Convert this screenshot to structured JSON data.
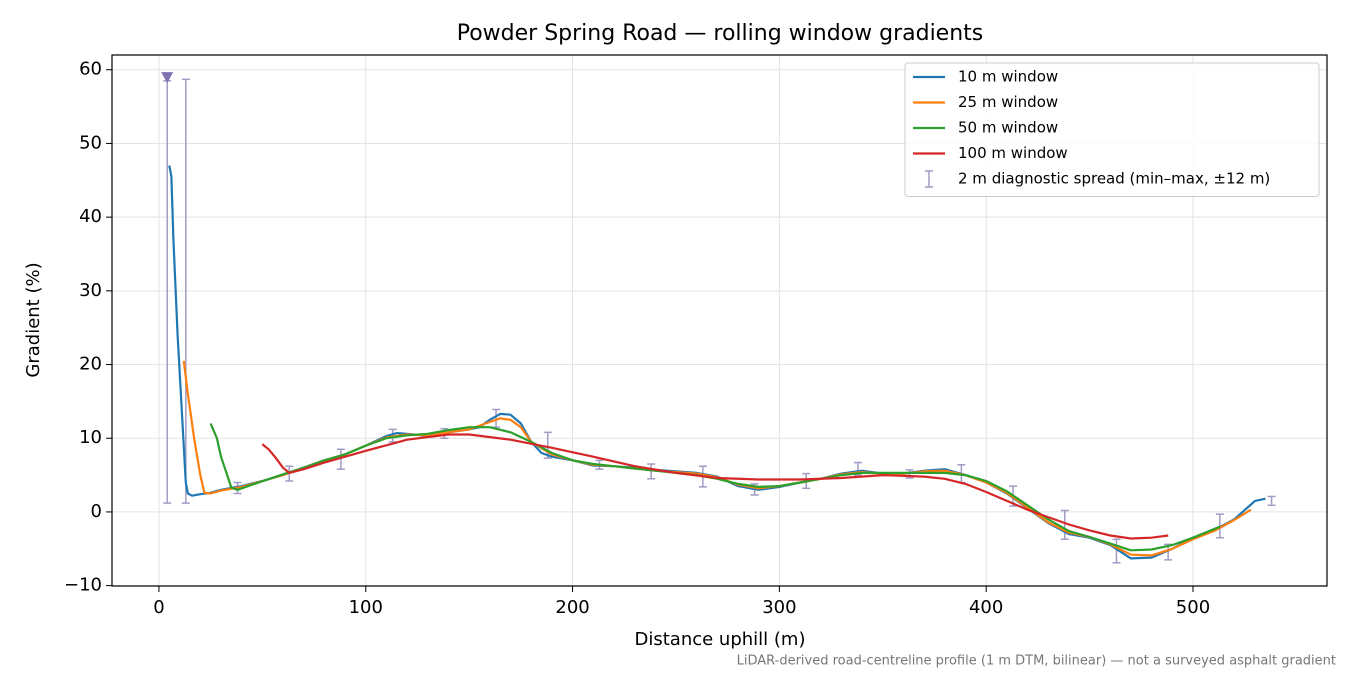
{
  "chart_data": {
    "type": "line",
    "title": "Powder Spring Road — rolling window gradients",
    "x_label": "Distance uphill (m)",
    "y_label": "Gradient (%)",
    "footnote": "LiDAR-derived road-centreline profile (1 m DTM, bilinear) — not a surveyed asphalt gradient",
    "xlim": [
      -22.7,
      564.8
    ],
    "ylim": [
      -10.05,
      62
    ],
    "xticks": [
      0,
      100,
      200,
      300,
      400,
      500
    ],
    "yticks": [
      {
        "value": -10,
        "label": "−10"
      },
      0,
      10,
      20,
      30,
      40,
      50,
      60
    ],
    "grid": true,
    "legend": "upper right",
    "series": [
      {
        "name": "10 m window",
        "color": "#1f77b4",
        "x": [
          5,
          6,
          7,
          9,
          11,
          13,
          14,
          16,
          20,
          25,
          30,
          40,
          50,
          60,
          70,
          80,
          90,
          100,
          110,
          115,
          120,
          130,
          140,
          150,
          155,
          160,
          165,
          170,
          175,
          180,
          185,
          190,
          200,
          210,
          220,
          230,
          240,
          250,
          260,
          270,
          280,
          290,
          300,
          310,
          320,
          330,
          340,
          350,
          360,
          370,
          380,
          390,
          400,
          410,
          420,
          430,
          440,
          450,
          460,
          470,
          480,
          490,
          500,
          510,
          520,
          530,
          535
        ],
        "values": [
          47,
          45.5,
          37,
          24,
          14,
          4,
          2.5,
          2.2,
          2.4,
          2.6,
          3,
          3.5,
          4.2,
          5,
          6,
          7,
          7.8,
          9,
          10.3,
          10.7,
          10.6,
          10.3,
          10.8,
          11.2,
          11.5,
          12.5,
          13.3,
          13.2,
          12,
          9.5,
          8,
          7.5,
          7,
          6.3,
          6.2,
          6,
          5.7,
          5.5,
          5.3,
          4.8,
          3.5,
          3,
          3.4,
          4,
          4.5,
          5.2,
          5.6,
          5.2,
          5.2,
          5.6,
          5.8,
          5,
          4,
          2.5,
          0.5,
          -1.5,
          -3,
          -3.5,
          -4.5,
          -6.3,
          -6.2,
          -5,
          -3.5,
          -2.5,
          -1,
          1.5,
          1.8
        ]
      },
      {
        "name": "25 m window",
        "color": "#ff7f0e",
        "x": [
          12,
          14,
          17,
          20,
          22,
          25,
          30,
          40,
          50,
          60,
          70,
          80,
          90,
          100,
          110,
          120,
          130,
          140,
          150,
          160,
          165,
          170,
          175,
          180,
          190,
          200,
          210,
          220,
          230,
          240,
          250,
          260,
          270,
          280,
          290,
          300,
          310,
          320,
          330,
          340,
          350,
          360,
          370,
          380,
          390,
          400,
          410,
          420,
          430,
          440,
          450,
          460,
          470,
          480,
          490,
          500,
          510,
          520,
          528
        ],
        "values": [
          20.5,
          16,
          10,
          5,
          2.6,
          2.5,
          2.9,
          3.4,
          4.2,
          5,
          6,
          7,
          7.8,
          9,
          10.1,
          10.5,
          10.4,
          10.8,
          11.2,
          12.2,
          12.7,
          12.5,
          11.5,
          9.5,
          7.8,
          7,
          6.4,
          6.2,
          5.9,
          5.6,
          5.4,
          5.2,
          4.7,
          3.7,
          3.2,
          3.5,
          4,
          4.5,
          5.1,
          5.4,
          5.2,
          5.2,
          5.5,
          5.6,
          5,
          4,
          2.6,
          0.6,
          -1.4,
          -2.8,
          -3.4,
          -4.4,
          -5.8,
          -5.9,
          -5,
          -3.7,
          -2.6,
          -1.1,
          0.3
        ]
      },
      {
        "name": "50 m window",
        "color": "#2ca02c",
        "x": [
          25,
          28,
          30,
          33,
          35,
          38,
          45,
          60,
          70,
          80,
          90,
          100,
          110,
          120,
          130,
          140,
          150,
          160,
          170,
          180,
          190,
          200,
          210,
          220,
          230,
          240,
          250,
          260,
          270,
          280,
          290,
          300,
          310,
          320,
          330,
          340,
          350,
          360,
          370,
          380,
          390,
          400,
          410,
          420,
          430,
          440,
          450,
          460,
          470,
          480,
          490,
          500,
          513
        ],
        "values": [
          12,
          10,
          7.5,
          5,
          3.3,
          3,
          3.7,
          5.1,
          6,
          7,
          7.8,
          9,
          10,
          10.4,
          10.6,
          11.1,
          11.5,
          11.5,
          10.8,
          9.5,
          8,
          7,
          6.5,
          6.2,
          5.9,
          5.6,
          5.3,
          5,
          4.5,
          3.8,
          3.4,
          3.5,
          4,
          4.5,
          5,
          5.3,
          5.3,
          5.3,
          5.3,
          5.3,
          5,
          4.2,
          2.8,
          0.9,
          -1,
          -2.6,
          -3.4,
          -4.3,
          -5.2,
          -5.1,
          -4.5,
          -3.5,
          -2
        ]
      },
      {
        "name": "100 m window",
        "color": "#d62728",
        "x": [
          50,
          53,
          56,
          60,
          63,
          70,
          80,
          100,
          120,
          140,
          150,
          170,
          190,
          210,
          230,
          250,
          270,
          290,
          310,
          330,
          350,
          370,
          380,
          390,
          400,
          410,
          420,
          430,
          440,
          450,
          460,
          470,
          480,
          488
        ],
        "values": [
          9.2,
          8.5,
          7.5,
          6,
          5.3,
          5.8,
          6.7,
          8.3,
          9.8,
          10.5,
          10.5,
          9.8,
          8.7,
          7.5,
          6.2,
          5.3,
          4.6,
          4.4,
          4.4,
          4.6,
          5,
          4.8,
          4.5,
          3.8,
          2.7,
          1.5,
          0.3,
          -0.7,
          -1.7,
          -2.5,
          -3.2,
          -3.6,
          -3.5,
          -3.2
        ]
      }
    ],
    "spread": {
      "name": "2 m diagnostic spread (min–max, ±12 m)",
      "color": "#a29bc4",
      "x": [
        4,
        13,
        38,
        63,
        88,
        113,
        138,
        163,
        188,
        213,
        238,
        263,
        288,
        313,
        338,
        363,
        388,
        413,
        438,
        463,
        488,
        513,
        538
      ],
      "min": [
        1.2,
        1.2,
        2.5,
        4.2,
        5.8,
        9.5,
        10,
        11.5,
        7.3,
        5.8,
        4.5,
        3.4,
        2.3,
        3.2,
        5,
        4.6,
        4,
        0.8,
        -3.7,
        -6.9,
        -6.5,
        -3.5,
        0.9
      ],
      "max": [
        58.5,
        58.7,
        4,
        6.2,
        8.5,
        11.2,
        11.3,
        13.9,
        10.8,
        7,
        6.5,
        6.2,
        3.8,
        5.2,
        6.7,
        5.7,
        6.4,
        3.5,
        0.2,
        -3.7,
        -4.4,
        -0.3,
        2.1
      ]
    },
    "clip_marker": {
      "x": 4,
      "y": 59,
      "color": "#8172b2"
    }
  }
}
